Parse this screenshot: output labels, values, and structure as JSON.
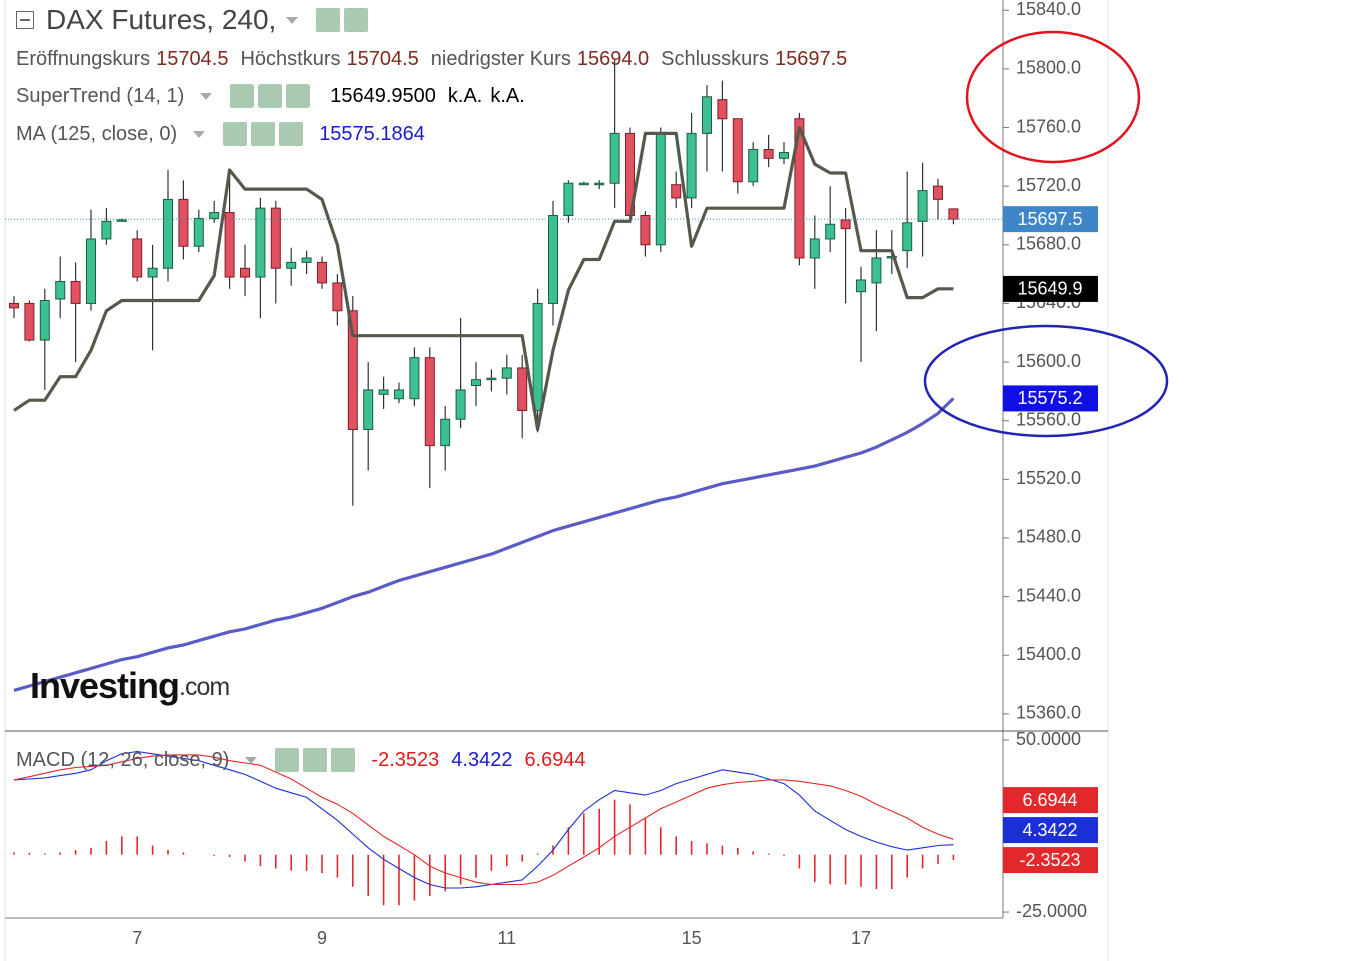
{
  "header": {
    "title": "DAX Futures, 240,",
    "logo": [
      "Investing",
      ".com"
    ]
  },
  "chart_data": [
    {
      "type": "candlestick",
      "ohlc_legend": [
        {
          "name": "Eröffnungskurs",
          "label": "15704.5"
        },
        {
          "name": "Höchstkurs",
          "label": "15704.5"
        },
        {
          "name": "niedrigster Kurs",
          "label": "15694.0"
        },
        {
          "name": "Schlusskurs",
          "label": "15697.5"
        }
      ],
      "categories": [
        null,
        null,
        null,
        null,
        null,
        null,
        null,
        null,
        "7",
        null,
        null,
        null,
        null,
        null,
        null,
        null,
        null,
        null,
        null,
        null,
        "9",
        null,
        null,
        null,
        null,
        null,
        null,
        null,
        null,
        null,
        null,
        null,
        "11",
        null,
        null,
        null,
        null,
        null,
        null,
        null,
        null,
        null,
        null,
        null,
        "15",
        null,
        null,
        null,
        null,
        null,
        null,
        null,
        null,
        null,
        null,
        "17",
        null,
        null,
        null,
        null,
        null,
        null
      ],
      "open": [
        15640,
        15640,
        15615,
        15643,
        15655,
        15640,
        15684,
        15697,
        15684,
        15658,
        15664,
        15711,
        15679,
        15698,
        15702,
        15664,
        15658,
        15705,
        15664,
        15668,
        15668,
        15654,
        15635,
        15554,
        15578,
        15575,
        15575,
        15603,
        15543,
        15561,
        15584,
        15588,
        15589,
        15596,
        15567,
        15640,
        15700,
        15722,
        15721,
        15722,
        15756,
        15700,
        15680,
        15721,
        15712,
        15756,
        15779,
        15766,
        15723,
        15745,
        15739,
        15766,
        15671,
        15684,
        15697,
        15648,
        15654,
        15671,
        15676,
        15696,
        15720,
        15704.5
      ],
      "high": [
        15645,
        15642,
        15650,
        15672,
        15668,
        15704,
        15705,
        15698,
        15690,
        15680,
        15731,
        15724,
        15704,
        15710,
        15731,
        15680,
        15712,
        15710,
        15678,
        15676,
        15672,
        15660,
        15645,
        15600,
        15590,
        15586,
        15610,
        15610,
        15570,
        15630,
        15600,
        15595,
        15605,
        15605,
        15650,
        15710,
        15724,
        15723,
        15724,
        15806,
        15760,
        15703,
        15760,
        15730,
        15770,
        15789,
        15792,
        15766,
        15750,
        15755,
        15750,
        15770,
        15700,
        15720,
        15705,
        15665,
        15690,
        15690,
        15730,
        15736,
        15725,
        15704.5
      ],
      "low": [
        15630,
        15614,
        15581,
        15630,
        15600,
        15635,
        15680,
        15696,
        15655,
        15608,
        15655,
        15670,
        15675,
        15695,
        15650,
        15645,
        15630,
        15640,
        15652,
        15660,
        15650,
        15625,
        15502,
        15526,
        15568,
        15572,
        15570,
        15514,
        15526,
        15555,
        15570,
        15580,
        15578,
        15548,
        15552,
        15625,
        15695,
        15721,
        15718,
        15705,
        15695,
        15672,
        15675,
        15705,
        15705,
        15730,
        15730,
        15715,
        15720,
        15733,
        15735,
        15666,
        15650,
        15675,
        15640,
        15600,
        15621,
        15660,
        15664,
        15672,
        15697,
        15694
      ],
      "close": [
        15637,
        15615,
        15642,
        15655,
        15640,
        15684,
        15696,
        15697,
        15658,
        15664,
        15711,
        15679,
        15698,
        15702,
        15658,
        15658,
        15705,
        15664,
        15668,
        15671,
        15654,
        15635,
        15554,
        15581,
        15581,
        15581,
        15603,
        15543,
        15561,
        15581,
        15588,
        15589,
        15596,
        15567,
        15640,
        15700,
        15722,
        15722,
        15722,
        15756,
        15700,
        15680,
        15756,
        15712,
        15756,
        15781,
        15766,
        15723,
        15745,
        15739,
        15743,
        15671,
        15684,
        15694,
        15691,
        15656,
        15671,
        15672,
        15695,
        15717,
        15711,
        15697.5
      ],
      "up_color": "#3cc08f",
      "down_color": "#e2515f",
      "series": [
        {
          "name": "SuperTrend (14, 1)",
          "color": "#55584a",
          "legend_label": "15649.9500",
          "notes": [
            "k.A.",
            "k.A."
          ],
          "values": [
            15567,
            15574,
            15574,
            15590,
            15590,
            15608,
            15635,
            15642,
            15642,
            15642,
            15642,
            15642,
            15642,
            15659,
            15731,
            15718,
            15718,
            15718,
            15718,
            15718,
            15711,
            15680,
            15618,
            15618,
            15618,
            15618,
            15618,
            15618,
            15618,
            15618,
            15618,
            15618,
            15618,
            15618,
            15554,
            15608,
            15649,
            15670,
            15670,
            15696,
            15696,
            15756,
            15756,
            15756,
            15679,
            15705,
            15705,
            15705,
            15705,
            15705,
            15705,
            15760,
            15735,
            15729,
            15729,
            15676,
            15676,
            15676,
            15644,
            15644,
            15649.95,
            15649.95
          ]
        },
        {
          "name": "MA (125, close, 0)",
          "color": "#5b5bc6",
          "values": [
            15376,
            15379,
            15382,
            15385,
            15388,
            15391,
            15394,
            15397,
            15399,
            15402,
            15405,
            15407,
            15410,
            15413,
            15416,
            15418,
            15421,
            15424,
            15426,
            15429,
            15432,
            15436,
            15440,
            15443,
            15447,
            15451,
            15454,
            15457,
            15460,
            15463,
            15466,
            15469,
            15473,
            15477,
            15481,
            15485,
            15488,
            15491,
            15494,
            15497,
            15500,
            15503,
            15506,
            15508,
            15511,
            15514,
            15517,
            15519,
            15521,
            15523,
            15525,
            15527,
            15529,
            15532,
            15535,
            15538,
            15542,
            15547,
            15552,
            15558,
            15565,
            15575.1864
          ]
        }
      ],
      "ylim": [
        15349,
        15847
      ],
      "yticks": [
        {
          "value": 15360,
          "label": "15360.0"
        },
        {
          "value": 15400,
          "label": "15400.0"
        },
        {
          "value": 15440,
          "label": "15440.0"
        },
        {
          "value": 15480,
          "label": "15480.0"
        },
        {
          "value": 15520,
          "label": "15520.0"
        },
        {
          "value": 15560,
          "label": "15560.0"
        },
        {
          "value": 15600,
          "label": "15600.0"
        },
        {
          "value": 15640,
          "label": "15640.0"
        },
        {
          "value": 15680,
          "label": "15680.0"
        },
        {
          "value": 15720,
          "label": "15720.0"
        },
        {
          "value": 15760,
          "label": "15760.0"
        },
        {
          "value": 15800,
          "label": "15800.0"
        },
        {
          "value": 15840,
          "label": "15840.0"
        }
      ],
      "grid": false,
      "last_price_line": true,
      "close_badge_color": "#3f86c9",
      "badges": [
        {
          "value": 15649.9,
          "color": "#000000"
        },
        {
          "value": 15575.2,
          "color": "#1010e6"
        }
      ]
    },
    {
      "type": "macd",
      "legend_title": "MACD (12, 26, close, 9)",
      "series": [
        {
          "color": "#e2282a",
          "style": "histogram",
          "values": [
            1,
            0.8,
            0.5,
            1,
            2,
            3,
            6,
            8,
            8,
            4,
            2,
            1,
            0,
            -0.5,
            -1,
            -3,
            -5,
            -6,
            -7,
            -7,
            -8,
            -10,
            -14,
            -18,
            -22,
            -22,
            -20,
            -18,
            -16,
            -13,
            -10,
            -7,
            -5,
            -3,
            0.5,
            4,
            12,
            18,
            20,
            24,
            22,
            16,
            12,
            8,
            6,
            5,
            4,
            3,
            1.5,
            0.5,
            -0.5,
            -6,
            -12,
            -13,
            -13,
            -14,
            -15,
            -15,
            -10,
            -6,
            -4,
            -2.3523
          ]
        },
        {
          "color": "#1a2fd6",
          "style": "line",
          "values": [
            32.6,
            33,
            33.5,
            34.5,
            35.5,
            37,
            41,
            44,
            45,
            44,
            43,
            42,
            41,
            39,
            37,
            35,
            32,
            29,
            27,
            25,
            20,
            15,
            9,
            3,
            -2,
            -6,
            -10,
            -13,
            -14.5,
            -14.5,
            -14,
            -13,
            -12,
            -11,
            -5,
            2,
            11,
            19,
            24,
            28,
            27,
            26,
            28,
            31,
            33,
            35,
            37,
            36,
            35,
            33,
            31,
            26,
            19,
            15,
            11,
            8,
            5.5,
            3.5,
            2,
            3,
            4,
            4.3422
          ]
        },
        {
          "color": "#e2282a",
          "style": "line",
          "values": [
            32.6,
            34,
            35.5,
            37,
            38,
            38.5,
            39,
            40.5,
            42,
            43,
            43.5,
            43.5,
            43.5,
            42.5,
            41,
            40,
            39,
            36,
            33,
            29,
            25,
            22,
            18,
            13,
            8,
            4,
            0,
            -5,
            -8,
            -10,
            -12,
            -13,
            -13,
            -13,
            -12,
            -9,
            -5,
            -1,
            3,
            8,
            12,
            16,
            20,
            23,
            26,
            29,
            30.5,
            31.5,
            32,
            32.6,
            32.6,
            32,
            31,
            30,
            28,
            25.5,
            22,
            19,
            16,
            12,
            9,
            6.6944
          ]
        }
      ],
      "ylim": [
        -27.6,
        53.5
      ],
      "yticks": [
        {
          "value": 50,
          "label": "50.0000"
        },
        {
          "value": -25,
          "label": "-25.0000"
        }
      ]
    }
  ]
}
